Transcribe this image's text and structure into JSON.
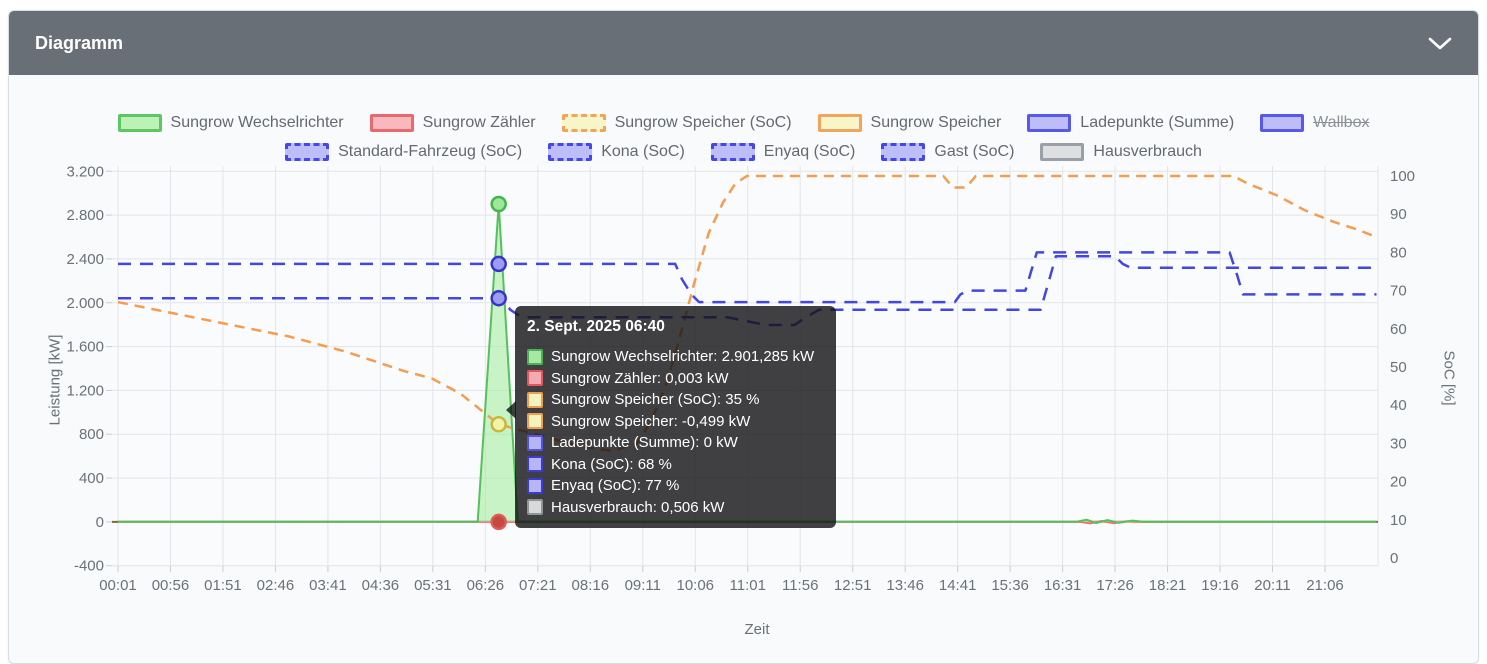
{
  "panel": {
    "title": "Diagramm",
    "collapse_icon": "chevron-down"
  },
  "axes": {
    "x": {
      "title": "Zeit",
      "ticks": [
        "00:01",
        "00:56",
        "01:51",
        "02:46",
        "03:41",
        "04:36",
        "05:31",
        "06:26",
        "07:21",
        "08:16",
        "09:11",
        "10:06",
        "11:01",
        "11:56",
        "12:51",
        "13:46",
        "14:41",
        "15:36",
        "16:31",
        "17:26",
        "18:21",
        "19:16",
        "20:11",
        "21:06"
      ]
    },
    "y_left": {
      "title": "Leistung [kW]",
      "ticks": [
        "3.200",
        "2.800",
        "2.400",
        "2.000",
        "1.600",
        "1.200",
        "800",
        "400",
        "0",
        "-400"
      ]
    },
    "y_right": {
      "title": "SoC [%]",
      "ticks": [
        "100",
        "90",
        "80",
        "70",
        "60",
        "50",
        "40",
        "30",
        "20",
        "10",
        "0"
      ]
    }
  },
  "swatch_styles": {
    "green-solid": {
      "fill": "#bdf2b6",
      "border": "#5dc763",
      "dash": false
    },
    "red-solid": {
      "fill": "#f7b9be",
      "border": "#ec686f",
      "dash": false
    },
    "yellow-dashed": {
      "fill": "#f6f6c9",
      "border": "#f4a35a",
      "dash": true
    },
    "yellow-solid": {
      "fill": "#f6f6c9",
      "border": "#f4a35a",
      "dash": false
    },
    "purple-solid": {
      "fill": "#bdbdf7",
      "border": "#5858ea",
      "dash": false
    },
    "purple-dashed": {
      "fill": "#bdbdf7",
      "border": "#4747e6",
      "dash": true
    },
    "gray-solid": {
      "fill": "#dddfe1",
      "border": "#9aa0a6",
      "dash": false
    }
  },
  "legend": {
    "rows": [
      [
        {
          "label": "Sungrow Wechselrichter",
          "style": "green-solid",
          "struck": false
        },
        {
          "label": "Sungrow Zähler",
          "style": "red-solid",
          "struck": false
        },
        {
          "label": "Sungrow Speicher (SoC)",
          "style": "yellow-dashed",
          "struck": false
        },
        {
          "label": "Sungrow Speicher",
          "style": "yellow-solid",
          "struck": false
        },
        {
          "label": "Ladepunkte (Summe)",
          "style": "purple-solid",
          "struck": false
        },
        {
          "label": "Wallbox",
          "style": "purple-solid",
          "struck": true
        }
      ],
      [
        {
          "label": "Standard-Fahrzeug (SoC)",
          "style": "purple-dashed",
          "struck": false
        },
        {
          "label": "Kona (SoC)",
          "style": "purple-dashed",
          "struck": false
        },
        {
          "label": "Enyaq (SoC)",
          "style": "purple-dashed",
          "struck": false
        },
        {
          "label": "Gast (SoC)",
          "style": "purple-dashed",
          "struck": false
        },
        {
          "label": "Hausverbrauch",
          "style": "gray-solid",
          "struck": false
        }
      ]
    ]
  },
  "tooltip": {
    "title": "2. Sept. 2025 06:40",
    "rows": [
      {
        "text": "Sungrow Wechselrichter: 2.901,285 kW",
        "fill": "#a8e8a0",
        "border": "#4db058"
      },
      {
        "text": "Sungrow Zähler: 0,003 kW",
        "fill": "#f5a9b0",
        "border": "#e2565e"
      },
      {
        "text": "Sungrow Speicher (SoC): 35 %",
        "fill": "#f3f3bd",
        "border": "#ef9d4f"
      },
      {
        "text": "Sungrow Speicher: -0,499 kW",
        "fill": "#f3f3bd",
        "border": "#ef9d4f"
      },
      {
        "text": "Ladepunkte (Summe): 0 kW",
        "fill": "#b6b6f5",
        "border": "#5252e8"
      },
      {
        "text": "Kona (SoC): 68 %",
        "fill": "#b6b6f5",
        "border": "#3b3bd6"
      },
      {
        "text": "Enyaq (SoC): 77 %",
        "fill": "#b6b6f5",
        "border": "#3b3bd6"
      },
      {
        "text": "Hausverbrauch: 0,506 kW",
        "fill": "#d9d9d9",
        "border": "#8f9498"
      }
    ]
  },
  "chart_data": {
    "type": "line",
    "xlabel": "Zeit",
    "ylabel_left": "Leistung [kW]",
    "ylabel_right": "SoC [%]",
    "ylim_left": [
      -400,
      3200
    ],
    "ylim_right": [
      0,
      100
    ],
    "x_range": [
      "00:01",
      "22:00"
    ],
    "grid": true,
    "legend_position": "top",
    "zero_line_color": "#7c6a3f",
    "grid_color": "#e2e5e9",
    "series": [
      {
        "name": "Hausverbrauch",
        "axis": "left",
        "unit": "kW",
        "color": "#a7abb0",
        "width": 2,
        "dash": null,
        "fill": null,
        "points": [
          [
            "00:01",
            0.5
          ],
          [
            "06:40",
            0.506
          ],
          [
            "22:00",
            0.45
          ]
        ]
      },
      {
        "name": "Ladepunkte (Summe)",
        "axis": "left",
        "unit": "kW",
        "color": "#8d8df0",
        "width": 2,
        "dash": null,
        "fill": null,
        "points": [
          [
            "00:01",
            0
          ],
          [
            "06:40",
            0
          ],
          [
            "22:00",
            0
          ]
        ]
      },
      {
        "name": "Sungrow Speicher",
        "axis": "left",
        "unit": "kW",
        "color": "#e6e696",
        "width": 2,
        "dash": null,
        "fill": null,
        "points": [
          [
            "00:01",
            -2
          ],
          [
            "06:40",
            -0.499
          ],
          [
            "22:00",
            -2
          ]
        ]
      },
      {
        "name": "Sungrow Zähler",
        "axis": "left",
        "unit": "kW",
        "color": "#ef7076",
        "width": 2,
        "dash": null,
        "fill": null,
        "points": [
          [
            "00:01",
            0
          ],
          [
            "06:40",
            0.003
          ],
          [
            "16:50",
            0
          ],
          [
            "17:00",
            -14
          ],
          [
            "17:12",
            8
          ],
          [
            "17:24",
            -12
          ],
          [
            "17:38",
            6
          ],
          [
            "17:50",
            0
          ],
          [
            "22:00",
            0
          ]
        ]
      },
      {
        "name": "Sungrow Wechselrichter",
        "axis": "left",
        "unit": "kW",
        "color": "#57c05d",
        "width": 2,
        "dash": null,
        "fill": "rgba(150,235,145,0.5)",
        "points": [
          [
            "00:01",
            1
          ],
          [
            "06:18",
            1
          ],
          [
            "06:40",
            2901.285
          ],
          [
            "07:00",
            1
          ],
          [
            "16:45",
            1
          ],
          [
            "16:56",
            20
          ],
          [
            "17:06",
            -10
          ],
          [
            "17:18",
            16
          ],
          [
            "17:30",
            -8
          ],
          [
            "17:44",
            12
          ],
          [
            "17:56",
            1
          ],
          [
            "22:00",
            1
          ]
        ]
      },
      {
        "name": "Sungrow Speicher (SoC)",
        "axis": "right",
        "unit": "%",
        "color": "#f79b4e",
        "width": 2.5,
        "dash": "10 7",
        "fill": null,
        "points": [
          [
            "00:01",
            67
          ],
          [
            "01:00",
            64
          ],
          [
            "02:00",
            61
          ],
          [
            "03:00",
            58
          ],
          [
            "04:00",
            54
          ],
          [
            "05:00",
            49
          ],
          [
            "05:30",
            47
          ],
          [
            "06:00",
            43
          ],
          [
            "06:40",
            35
          ],
          [
            "07:10",
            33
          ],
          [
            "07:40",
            31
          ],
          [
            "08:10",
            29
          ],
          [
            "08:40",
            28
          ],
          [
            "09:05",
            30
          ],
          [
            "09:20",
            36
          ],
          [
            "09:35",
            45
          ],
          [
            "09:50",
            58
          ],
          [
            "10:05",
            72
          ],
          [
            "10:20",
            85
          ],
          [
            "10:35",
            93
          ],
          [
            "10:48",
            98
          ],
          [
            "11:00",
            100
          ],
          [
            "14:26",
            100
          ],
          [
            "14:36",
            97
          ],
          [
            "14:50",
            97
          ],
          [
            "15:00",
            100
          ],
          [
            "19:30",
            100
          ],
          [
            "19:45",
            98
          ],
          [
            "20:15",
            95
          ],
          [
            "20:45",
            91
          ],
          [
            "21:15",
            88
          ],
          [
            "21:40",
            86
          ],
          [
            "22:00",
            84
          ]
        ]
      },
      {
        "name": "Kona (SoC)",
        "axis": "right",
        "unit": "%",
        "color": "#4545e2",
        "width": 2.5,
        "dash": "13 9",
        "fill": null,
        "points": [
          [
            "00:01",
            68
          ],
          [
            "06:44",
            68
          ],
          [
            "06:52",
            65
          ],
          [
            "07:04",
            63
          ],
          [
            "10:40",
            63
          ],
          [
            "11:00",
            62
          ],
          [
            "11:20",
            61
          ],
          [
            "11:50",
            61
          ],
          [
            "12:02",
            63
          ],
          [
            "12:16",
            65
          ],
          [
            "16:08",
            65
          ],
          [
            "16:16",
            72
          ],
          [
            "16:24",
            79
          ],
          [
            "17:26",
            79
          ],
          [
            "17:34",
            77
          ],
          [
            "17:42",
            76
          ],
          [
            "22:00",
            76
          ]
        ]
      },
      {
        "name": "Enyaq (SoC)",
        "axis": "right",
        "unit": "%",
        "color": "#4545e2",
        "width": 2.5,
        "dash": "13 9",
        "fill": null,
        "points": [
          [
            "00:01",
            77
          ],
          [
            "09:45",
            77
          ],
          [
            "09:52",
            73
          ],
          [
            "10:02",
            69
          ],
          [
            "10:10",
            67
          ],
          [
            "14:38",
            67
          ],
          [
            "14:44",
            69
          ],
          [
            "14:52",
            70
          ],
          [
            "15:52",
            70
          ],
          [
            "15:58",
            75
          ],
          [
            "16:04",
            80
          ],
          [
            "19:26",
            80
          ],
          [
            "19:34",
            74
          ],
          [
            "19:40",
            69
          ],
          [
            "22:00",
            69
          ]
        ]
      }
    ],
    "hover": {
      "time": "06:40",
      "points": [
        {
          "series": "Sungrow Wechselrichter",
          "axis": "left",
          "value": 2901.285,
          "fill": "#9fe79b",
          "stroke": "#44b54d"
        },
        {
          "series": "Enyaq (SoC)",
          "axis": "right",
          "value": 77,
          "fill": "#9c9cf2",
          "stroke": "#3434c9"
        },
        {
          "series": "Kona (SoC)",
          "axis": "right",
          "value": 68,
          "fill": "#9c9cf2",
          "stroke": "#3434c9"
        },
        {
          "series": "Sungrow Speicher (SoC)",
          "axis": "right",
          "value": 35,
          "fill": "#f2f2a9",
          "stroke": "#c3b93a"
        },
        {
          "series": "Sungrow Zähler",
          "axis": "left",
          "value": 0,
          "fill": "#c24a42",
          "stroke": "#e35b55"
        }
      ]
    }
  }
}
